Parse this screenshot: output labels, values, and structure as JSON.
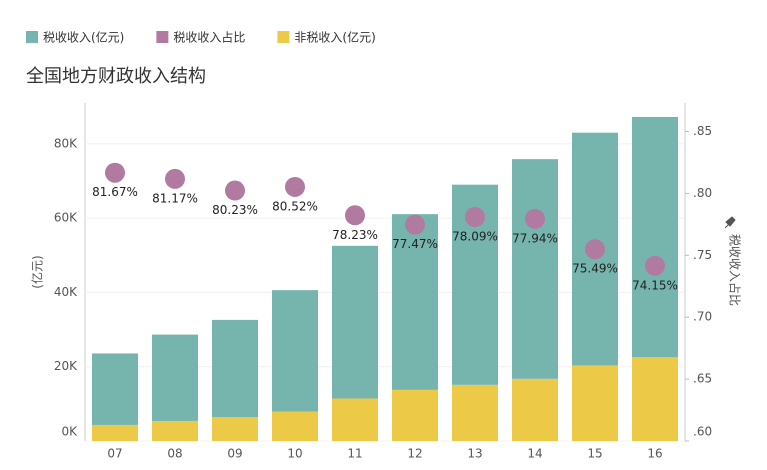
{
  "chart_data": {
    "type": "bar",
    "title": "全国地方财政收入结构",
    "categories": [
      "07",
      "08",
      "09",
      "10",
      "11",
      "12",
      "13",
      "14",
      "15",
      "16"
    ],
    "series": [
      {
        "name": "税收收入(亿元)",
        "color": "#76b5ae",
        "values": [
          19252,
          23255,
          26157,
          32701,
          41106,
          47319,
          53891,
          59140,
          62662,
          64692
        ]
      },
      {
        "name": "税收收入占比",
        "color": "#b07aa1",
        "type": "scatter",
        "axis": "y2",
        "values": [
          0.8167,
          0.8117,
          0.8023,
          0.8052,
          0.7823,
          0.7747,
          0.7809,
          0.7794,
          0.7549,
          0.7415
        ],
        "value_labels": [
          "81.67%",
          "81.17%",
          "80.23%",
          "80.52%",
          "78.23%",
          "77.47%",
          "78.09%",
          "77.94%",
          "75.49%",
          "74.15%"
        ]
      },
      {
        "name": "非税收入(亿元)",
        "color": "#edc948",
        "values": [
          4320,
          5395,
          6446,
          7912,
          11442,
          13759,
          15120,
          16737,
          20347,
          22541
        ]
      }
    ],
    "ylabel": "(亿元)",
    "y2label": "税收收入占比",
    "ylim": [
      0,
      91000
    ],
    "yticks": [
      {
        "value": 0,
        "label": "0K"
      },
      {
        "value": 20000,
        "label": "20K"
      },
      {
        "value": 40000,
        "label": "40K"
      },
      {
        "value": 60000,
        "label": "60K"
      },
      {
        "value": 80000,
        "label": "80K"
      }
    ],
    "y2lim": [
      0.6,
      0.873
    ],
    "y2ticks": [
      {
        "value": 0.6,
        "label": ".60"
      },
      {
        "value": 0.65,
        "label": ".65"
      },
      {
        "value": 0.7,
        "label": ".70"
      },
      {
        "value": 0.75,
        "label": ".75"
      },
      {
        "value": 0.8,
        "label": ".80"
      },
      {
        "value": 0.85,
        "label": ".85"
      }
    ],
    "grid": true
  }
}
